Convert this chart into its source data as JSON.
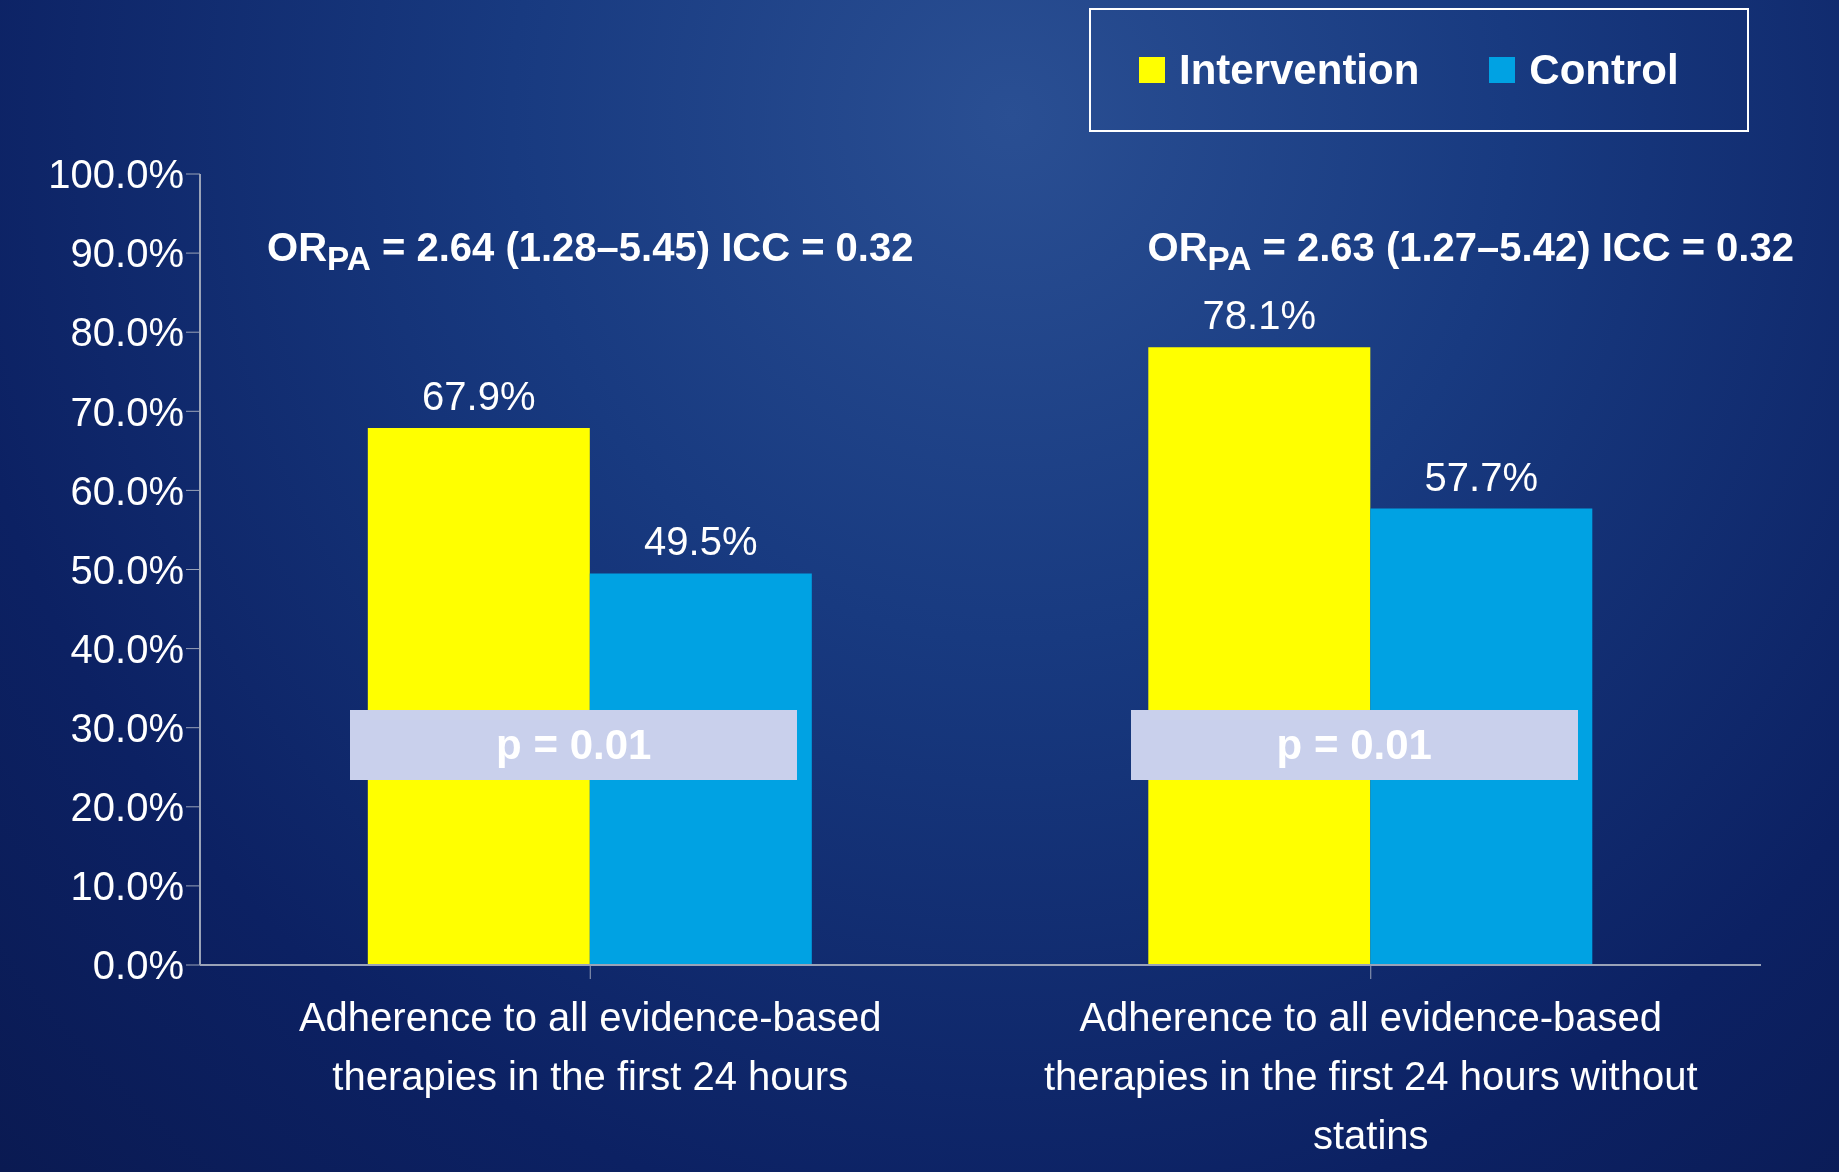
{
  "chart_data": {
    "type": "bar",
    "categories": [
      "Adherence to all evidence-based therapies in the first 24 hours",
      "Adherence to all evidence-based therapies in the first 24 hours without statins"
    ],
    "series": [
      {
        "name": "Intervention",
        "color": "#ffff00",
        "values": [
          67.9,
          78.1
        ],
        "value_labels": [
          "67.9%",
          "78.1%"
        ]
      },
      {
        "name": "Control",
        "color": "#00a2e3",
        "values": [
          49.5,
          57.7
        ],
        "value_labels": [
          "49.5%",
          "57.7%"
        ]
      }
    ],
    "ylim": [
      0,
      100
    ],
    "yticks": [
      {
        "value": 0,
        "label": "0.0%"
      },
      {
        "value": 10,
        "label": "10.0%"
      },
      {
        "value": 20,
        "label": "20.0%"
      },
      {
        "value": 30,
        "label": "30.0%"
      },
      {
        "value": 40,
        "label": "40.0%"
      },
      {
        "value": 50,
        "label": "50.0%"
      },
      {
        "value": 60,
        "label": "60.0%"
      },
      {
        "value": 70,
        "label": "70.0%"
      },
      {
        "value": 80,
        "label": "80.0%"
      },
      {
        "value": 90,
        "label": "90.0%"
      },
      {
        "value": 100,
        "label": "100.0%"
      }
    ],
    "annotations": [
      "OR$_{PA}$ = 2.64 (1.28–5.45)  ICC =  0.32",
      "OR$_{PA}$ = 2.63 (1.27–5.42) ICC =  0.32",
      "p = 0.01",
      "p = 0.01"
    ],
    "legend": "top right",
    "grid": false
  }
}
